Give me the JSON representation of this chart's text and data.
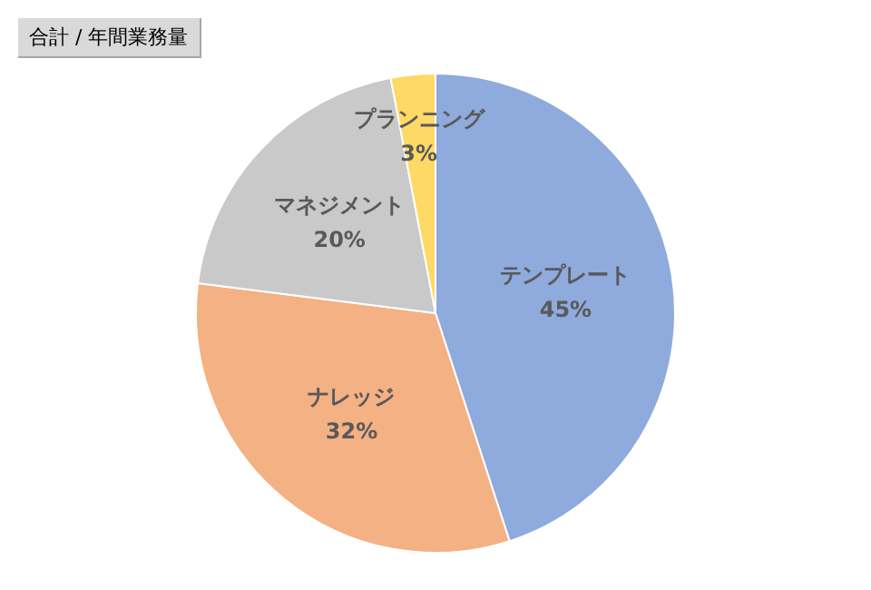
{
  "chart_data": {
    "type": "pie",
    "title": "合計 / 年間業務量",
    "categories": [
      "テンプレート",
      "ナレッジ",
      "マネジメント",
      "プランニング"
    ],
    "values": [
      45,
      32,
      20,
      3
    ],
    "colors": [
      "#8faadc",
      "#f4b183",
      "#c9c9c9",
      "#ffd966"
    ],
    "value_labels": [
      "45%",
      "32%",
      "20%",
      "3%"
    ],
    "legend": false
  }
}
